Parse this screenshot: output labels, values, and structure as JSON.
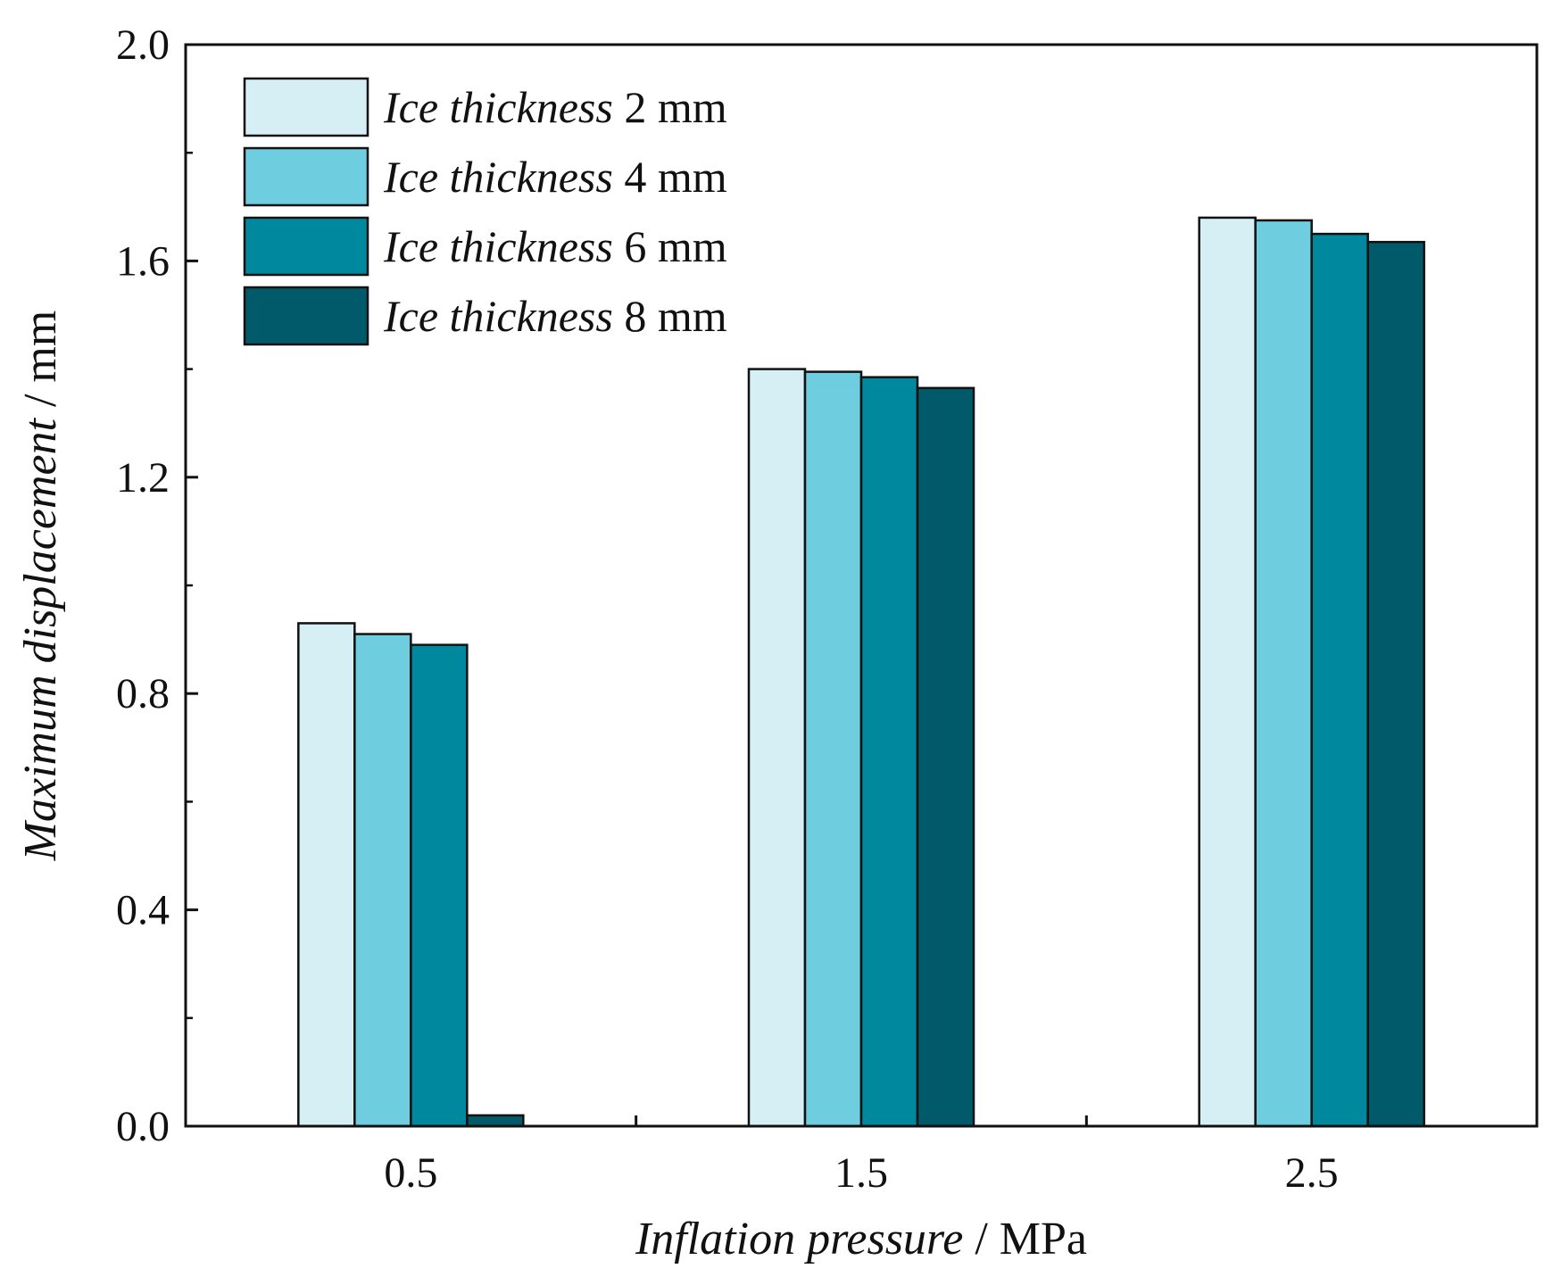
{
  "chart_data": {
    "type": "bar",
    "title": "",
    "xlabel": {
      "italic": "Inflation pressure",
      "unit": " / MPa"
    },
    "ylabel": {
      "italic": "Maximum displacement",
      "unit": " / mm"
    },
    "categories": [
      "0.5",
      "1.5",
      "2.5"
    ],
    "ylim": [
      0,
      2.0
    ],
    "yticks": [
      "0.0",
      "0.4",
      "0.8",
      "1.2",
      "1.6",
      "2.0"
    ],
    "yminor_step": 0.2,
    "grid": false,
    "legend_position": "top-left",
    "series": [
      {
        "prefix": "Ice thickness",
        "suffix": " 2 mm",
        "color": "#d6eff5",
        "values": [
          0.93,
          1.4,
          1.68
        ]
      },
      {
        "prefix": "Ice thickness",
        "suffix": " 4 mm",
        "color": "#6ecedf",
        "values": [
          0.91,
          1.395,
          1.675
        ]
      },
      {
        "prefix": "Ice thickness",
        "suffix": " 6 mm",
        "color": "#00899e",
        "values": [
          0.89,
          1.385,
          1.65
        ]
      },
      {
        "prefix": "Ice thickness",
        "suffix": " 8 mm",
        "color": "#005a6a",
        "values": [
          0.02,
          1.365,
          1.635
        ]
      }
    ]
  }
}
